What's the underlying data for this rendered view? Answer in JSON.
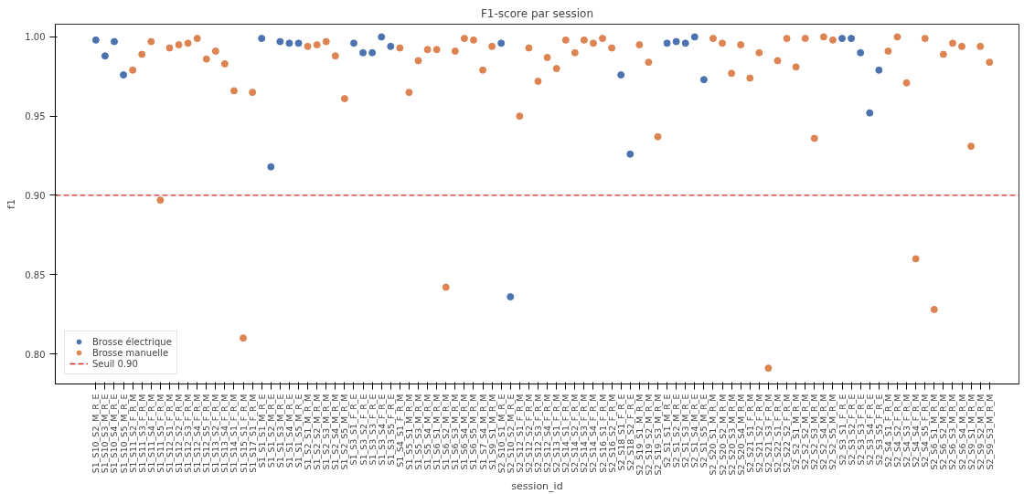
{
  "chart_data": {
    "type": "scatter",
    "title": "F1-score par session",
    "xlabel": "session_id",
    "ylabel": "f1",
    "categories": [
      "S1_S10_S2_M_R_E",
      "S1_S10_S3_M_R_E",
      "S1_S10_S4_M_R_E",
      "S1_S10_S5_M_R_E",
      "S1_S11_S2_F_R_M",
      "S1_S11_S3_F_R_M",
      "S1_S11_S4_F_R_M",
      "S1_S11_S5_F_R_M",
      "S1_S12_S1_F_R_M",
      "S1_S12_S2_F_R_M",
      "S1_S12_S3_F_R_M",
      "S1_S12_S4_F_R_M",
      "S1_S12_S5_F_R_M",
      "S1_S13_S2_F_R_M",
      "S1_S13_S4_F_R_M",
      "S1_S14_S1_F_R_M",
      "S1_S15_S1_F_R_M",
      "S1_S17_S1_F_R_M",
      "S1_S1_S1_M_R_E",
      "S1_S1_S2_M_R_E",
      "S1_S1_S3_M_R_E",
      "S1_S1_S4_M_R_E",
      "S1_S1_S5_M_R_E",
      "S1_S2_S1_M_R_M",
      "S1_S2_S2_M_R_M",
      "S1_S2_S3_M_R_M",
      "S1_S2_S4_M_R_M",
      "S1_S2_S5_M_R_M",
      "S1_S3_S1_F_R_E",
      "S1_S3_S2_F_R_E",
      "S1_S3_S3_F_R_E",
      "S1_S3_S4_F_R_E",
      "S1_S3_S5_F_R_E",
      "S1_S4_S1_F_R_M",
      "S1_S5_S1_M_R_M",
      "S1_S5_S3_M_R_M",
      "S1_S5_S4_M_R_M",
      "S1_S6_S1_M_R_M",
      "S1_S6_S2_M_R_M",
      "S1_S6_S3_M_R_M",
      "S1_S6_S4_M_R_M",
      "S1_S6_S5_M_R_M",
      "S1_S7_S4_M_R_M",
      "S1_S9_S1_M_R_M",
      "S2_S10_S1_M_R_E",
      "S2_S10_S2_M_R_E",
      "S2_S12_S1_F_R_M",
      "S2_S12_S2_F_R_M",
      "S2_S12_S3_F_R_M",
      "S2_S12_S4_F_R_M",
      "S2_S13_S1_F_R_M",
      "S2_S14_S1_F_R_M",
      "S2_S14_S2_F_R_M",
      "S2_S14_S3_F_R_M",
      "S2_S14_S4_F_R_M",
      "S2_S16_S1_F_R_M",
      "S2_S16_S2_F_R_M",
      "S2_S18_S1_F_R_E",
      "S2_S18_S2_F_R_E",
      "S2_S19_S1_M_R_M",
      "S2_S19_S2_M_R_M",
      "S2_S19_S3_M_R_M",
      "S2_S1_S1_M_R_E",
      "S2_S1_S2_M_R_E",
      "S2_S1_S3_M_R_E",
      "S2_S1_S4_M_R_E",
      "S2_S1_S5_M_R_E",
      "S2_S20_S1_M_R_M",
      "S2_S20_S2_M_R_M",
      "S2_S20_S3_M_R_M",
      "S2_S20_S4_M_R_M",
      "S2_S21_S1_F_R_M",
      "S2_S21_S2_F_R_M",
      "S2_S21_S3_F_R_M",
      "S2_S22_S1_F_R_M",
      "S2_S22_S2_F_R_M",
      "S2_S2_S1_M_R_M",
      "S2_S2_S2_M_R_M",
      "S2_S2_S3_M_R_M",
      "S2_S2_S4_M_R_M",
      "S2_S2_S5_M_R_M",
      "S2_S3_S1_F_R_E",
      "S2_S3_S2_F_R_E",
      "S2_S3_S3_F_R_E",
      "S2_S3_S4_F_R_E",
      "S2_S3_S5_F_R_E",
      "S2_S4_S1_F_R_M",
      "S2_S4_S2_F_R_M",
      "S2_S4_S3_F_R_M",
      "S2_S4_S4_F_R_M",
      "S2_S4_S5_F_R_M",
      "S2_S6_S1_M_R_M",
      "S2_S6_S2_M_R_M",
      "S2_S6_S3_M_R_M",
      "S2_S6_S4_M_R_M",
      "S2_S9_S1_M_R_M",
      "S2_S9_S2_M_R_M",
      "S2_S9_S3_M_R_M"
    ],
    "series": [
      {
        "name": "Brosse électrique",
        "color": "#4c72b0",
        "values": [
          0.998,
          0.988,
          0.997,
          0.976,
          null,
          null,
          null,
          null,
          null,
          null,
          null,
          null,
          null,
          null,
          null,
          null,
          null,
          null,
          0.999,
          0.918,
          0.997,
          0.996,
          0.996,
          null,
          null,
          null,
          null,
          null,
          0.996,
          0.99,
          0.99,
          1.0,
          0.994,
          null,
          null,
          null,
          null,
          null,
          null,
          null,
          null,
          null,
          null,
          null,
          0.996,
          0.836,
          null,
          null,
          null,
          null,
          null,
          null,
          null,
          null,
          null,
          null,
          null,
          0.976,
          0.926,
          null,
          null,
          null,
          0.996,
          0.997,
          0.996,
          1.0,
          0.973,
          null,
          null,
          null,
          null,
          null,
          null,
          null,
          null,
          null,
          null,
          null,
          null,
          null,
          null,
          0.999,
          0.999,
          0.99,
          0.952,
          0.979,
          null,
          null,
          null,
          null,
          null,
          null,
          null,
          null,
          null,
          null,
          null,
          null
        ]
      },
      {
        "name": "Brosse manuelle",
        "color": "#dd8452",
        "values": [
          null,
          null,
          null,
          null,
          0.979,
          0.989,
          0.997,
          0.897,
          0.993,
          0.995,
          0.996,
          0.999,
          0.986,
          0.991,
          0.983,
          0.966,
          0.81,
          0.965,
          null,
          null,
          null,
          null,
          null,
          0.994,
          0.995,
          0.997,
          0.988,
          0.961,
          null,
          null,
          null,
          null,
          null,
          0.993,
          0.965,
          0.985,
          0.992,
          0.992,
          0.842,
          0.991,
          0.999,
          0.998,
          0.979,
          0.994,
          null,
          null,
          0.95,
          0.993,
          0.972,
          0.987,
          0.98,
          0.998,
          0.99,
          0.998,
          0.996,
          0.999,
          0.993,
          null,
          null,
          0.995,
          0.984,
          0.937,
          null,
          null,
          null,
          null,
          null,
          0.999,
          0.996,
          0.977,
          0.995,
          0.974,
          0.99,
          0.791,
          0.985,
          0.999,
          0.981,
          0.999,
          0.936,
          1.0,
          0.998,
          null,
          null,
          null,
          null,
          null,
          0.991,
          1.0,
          0.971,
          0.86,
          0.999,
          0.828,
          0.989,
          0.996,
          0.994,
          0.931,
          0.994,
          0.984
        ]
      }
    ],
    "ylim": [
      0.781,
      1.008
    ],
    "yticks": [
      {
        "value": 0.8,
        "label": "0.80"
      },
      {
        "value": 0.85,
        "label": "0.85"
      },
      {
        "value": 0.9,
        "label": "0.90"
      },
      {
        "value": 0.95,
        "label": "0.95"
      },
      {
        "value": 1.0,
        "label": "1.00"
      }
    ],
    "ref_lines": [
      {
        "axis": "y",
        "value": 0.9,
        "label": "Seuil 0.90",
        "color": "#d62728",
        "line_style": "dashed"
      }
    ],
    "marker": "circle",
    "grid": false,
    "legend": "bottom left"
  }
}
